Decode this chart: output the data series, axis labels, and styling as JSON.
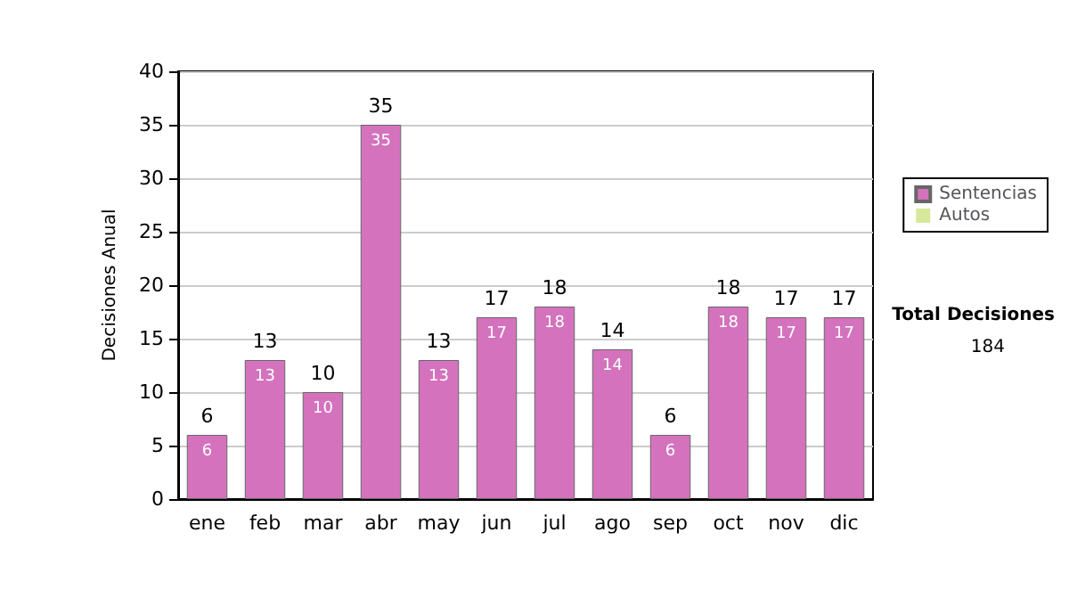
{
  "chart_data": {
    "type": "bar",
    "ylabel": "Decisiones Anual",
    "categories": [
      "ene",
      "feb",
      "mar",
      "abr",
      "may",
      "jun",
      "jul",
      "ago",
      "sep",
      "oct",
      "nov",
      "dic"
    ],
    "series": [
      {
        "name": "Sentencias",
        "color": "#d472bd",
        "values": [
          6,
          13,
          10,
          35,
          13,
          17,
          18,
          14,
          6,
          18,
          17,
          17
        ],
        "value_labels": [
          "6",
          "13",
          "10",
          "35",
          "13",
          "17",
          "18",
          "14",
          "6",
          "18",
          "17",
          "17"
        ]
      },
      {
        "name": "Autos",
        "color": "#d8e89a",
        "values": [
          0,
          0,
          0,
          0,
          0,
          0,
          0,
          0,
          0,
          0,
          0,
          0
        ]
      }
    ],
    "stacked": true,
    "totals": [
      "6",
      "13",
      "10",
      "35",
      "13",
      "17",
      "18",
      "14",
      "6",
      "18",
      "17",
      "17"
    ],
    "ylim": [
      0,
      40
    ],
    "yticks": [
      0,
      5,
      10,
      15,
      20,
      25,
      30,
      35,
      40
    ],
    "grid": "y",
    "legend": "right",
    "annotations": [
      "Total Decisiones",
      "184"
    ]
  }
}
